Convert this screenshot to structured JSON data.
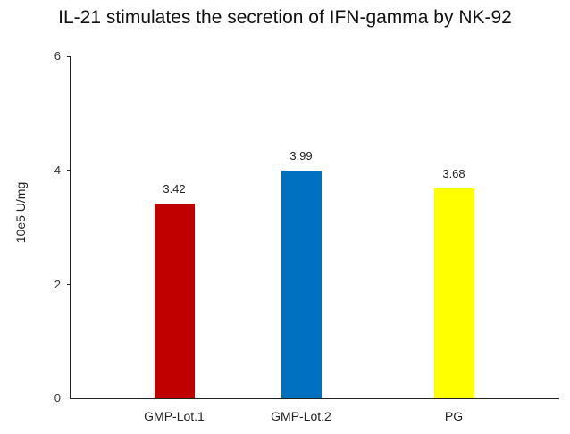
{
  "chart_data": {
    "type": "bar",
    "title": "IL-21  stimulates the secretion of IFN-gamma by NK-92",
    "xlabel": "",
    "ylabel": "10e5 U/mg",
    "ylim": [
      0,
      6
    ],
    "yticks": [
      "0",
      "2",
      "4",
      "6"
    ],
    "grid": false,
    "legend": null,
    "categories": [
      "GMP-Lot.1",
      "GMP-Lot.2",
      "PG"
    ],
    "values": [
      3.42,
      3.99,
      3.68
    ],
    "value_labels": [
      "3.42",
      "3.99",
      "3.68"
    ],
    "colors": [
      "#c00000",
      "#0070c0",
      "#ffff00"
    ]
  }
}
